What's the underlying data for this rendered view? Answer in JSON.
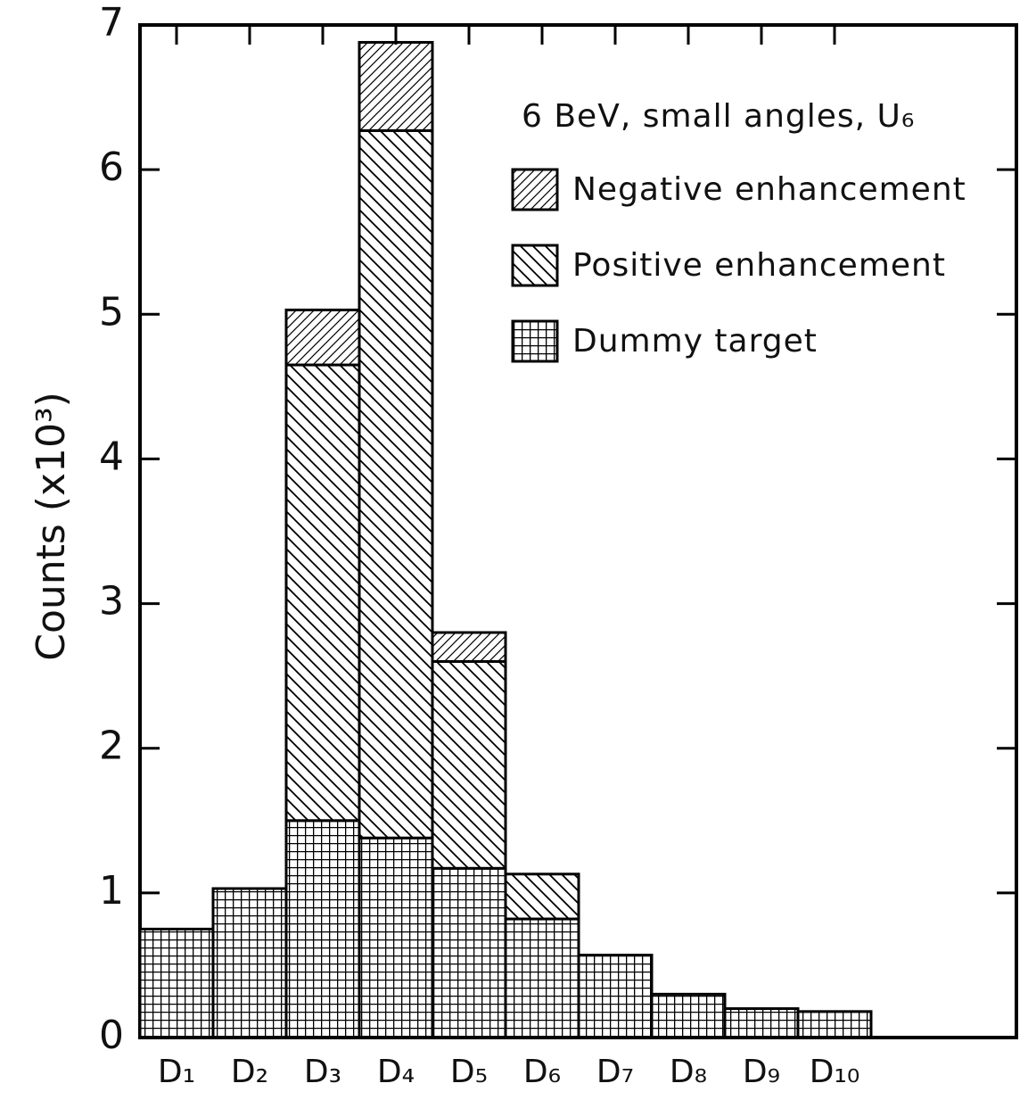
{
  "chart_data": {
    "type": "stacked-histogram",
    "legend_title": "6 BeV, small angles, U₆",
    "y_label": "Counts (x10³)",
    "categories": [
      "D₁",
      "D₂",
      "D₃",
      "D₄",
      "D₅",
      "D₆",
      "D₇",
      "D₈",
      "D₉",
      "D₁₀"
    ],
    "series": [
      {
        "name": "Dummy target",
        "color": "#000000",
        "pattern": "grid",
        "values": [
          0.75,
          1.03,
          1.5,
          1.38,
          1.17,
          0.82,
          0.57,
          0.3,
          0.2,
          0.18
        ]
      },
      {
        "name": "Positive enhancement",
        "color": "#000000",
        "pattern": "backslash",
        "values": [
          0,
          0,
          3.15,
          4.89,
          1.43,
          0.31,
          0,
          0,
          0,
          0
        ]
      },
      {
        "name": "Negative enhancement",
        "color": "#000000",
        "pattern": "slash",
        "values": [
          0,
          0,
          0.38,
          0.61,
          0.2,
          0,
          0,
          0,
          0,
          0
        ]
      }
    ],
    "ylim": [
      0,
      7
    ],
    "yticks": [
      0,
      1,
      2,
      3,
      4,
      5,
      6,
      7
    ],
    "legend": "upper right"
  }
}
